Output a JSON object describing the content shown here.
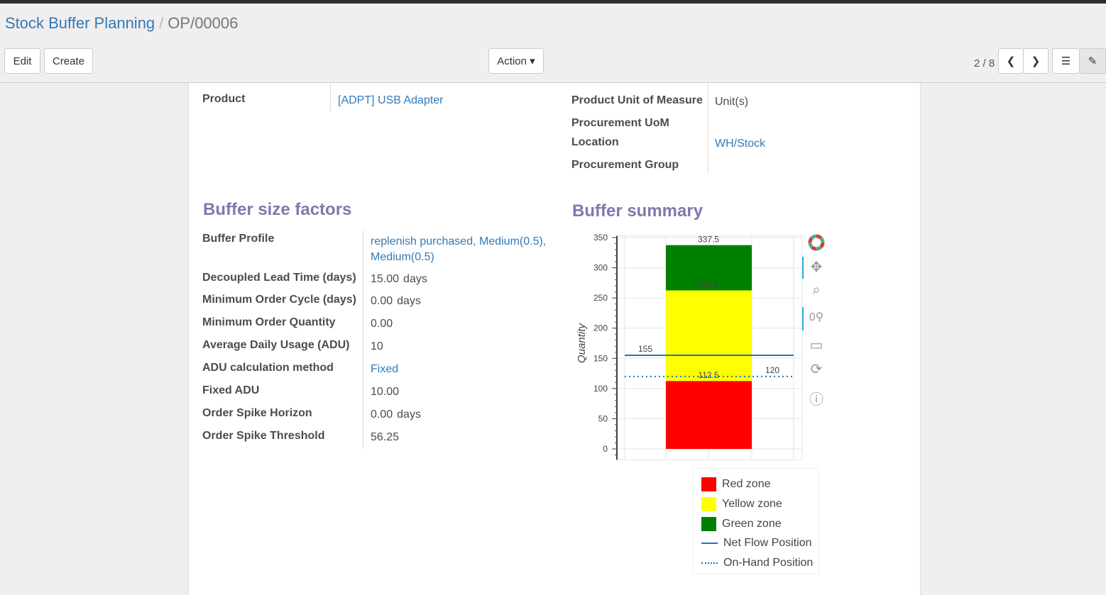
{
  "breadcrumb": {
    "parent": "Stock Buffer Planning",
    "current": "OP/00006"
  },
  "toolbar": {
    "edit": "Edit",
    "create": "Create",
    "action": "Action",
    "pager": "2 / 8"
  },
  "header_fields": {
    "product_label": "Product",
    "product_value": "[ADPT] USB Adapter",
    "uom_label": "Product Unit of Measure",
    "uom_value": "Unit(s)",
    "proc_uom_label": "Procurement UoM",
    "location_label": "Location",
    "location_value": "WH/Stock",
    "group_label": "Procurement Group"
  },
  "factors": {
    "title": "Buffer size factors",
    "rows": [
      {
        "label": "Buffer Profile",
        "value": "replenish purchased, Medium(0.5), Medium(0.5)",
        "link": true
      },
      {
        "label": "Decoupled Lead Time (days)",
        "value": "15.00",
        "unit": "days"
      },
      {
        "label": "Minimum Order Cycle (days)",
        "value": "0.00",
        "unit": "days"
      },
      {
        "label": "Minimum Order Quantity",
        "value": "0.00"
      },
      {
        "label": "Average Daily Usage (ADU)",
        "value": "10"
      },
      {
        "label": "ADU calculation method",
        "value": "Fixed",
        "link": true
      },
      {
        "label": "Fixed ADU",
        "value": "10.00"
      },
      {
        "label": "Order Spike Horizon",
        "value": "0.00",
        "unit": "days"
      },
      {
        "label": "Order Spike Threshold",
        "value": "56.25"
      }
    ]
  },
  "summary": {
    "title": "Buffer summary"
  },
  "chart_data": {
    "type": "bar",
    "ylabel": "Quantity",
    "ylim": [
      -18,
      353
    ],
    "yticks": [
      0,
      50,
      100,
      150,
      200,
      250,
      300,
      350
    ],
    "grid": true,
    "stack": [
      {
        "name": "Red zone",
        "from": 0,
        "to": 112.5,
        "color": "#ff0000",
        "label": "112.5"
      },
      {
        "name": "Yellow zone",
        "from": 112.5,
        "to": 262.5,
        "color": "#ffff00",
        "label": "262.5"
      },
      {
        "name": "Green zone",
        "from": 262.5,
        "to": 337.5,
        "color": "#008000",
        "label": "337.5"
      }
    ],
    "lines": [
      {
        "name": "Net Flow Position",
        "value": 155,
        "label": "155",
        "style": "solid",
        "color": "#1f77b4"
      },
      {
        "name": "On-Hand Position",
        "value": 120,
        "label": "120",
        "style": "dotted",
        "color": "#1f77b4"
      }
    ]
  }
}
